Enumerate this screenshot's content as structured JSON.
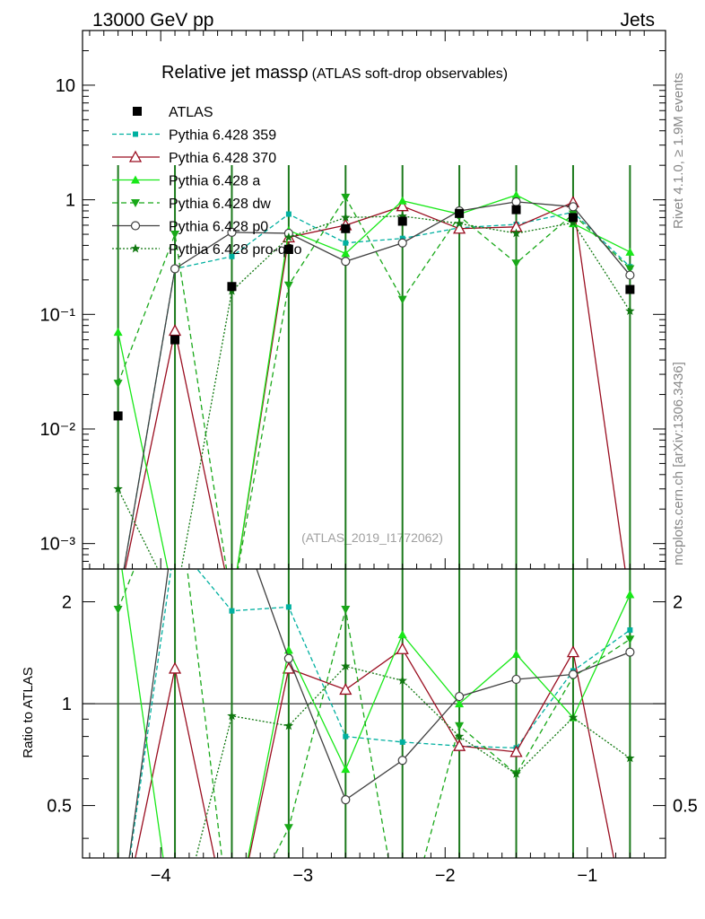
{
  "header": {
    "left": "13000 GeV pp",
    "right": "Jets",
    "side_top": "Rivet 4.1.0, ≥ 1.9M events",
    "side_bottom": "mcplots.cern.ch [arXiv:1306.3436]"
  },
  "chart_data": {
    "type": "line",
    "title": "Relative jet massρ",
    "subtitle": "(ATLAS soft-drop observables)",
    "watermark": "(ATLAS_2019_I1772062)",
    "xlabel": "",
    "ylabel_ratio": "Ratio to ATLAS",
    "x": [
      -4.3,
      -3.9,
      -3.5,
      -3.1,
      -2.7,
      -2.3,
      -1.9,
      -1.5,
      -1.1,
      -0.7
    ],
    "xlim": [
      -4.55,
      -0.45
    ],
    "ylim_main": [
      0.0006,
      30
    ],
    "ylim_ratio": [
      0.35,
      2.5
    ],
    "x_ticks": [
      "−4",
      "−3",
      "−2",
      "−1"
    ],
    "x_tick_values": [
      -4,
      -3,
      -2,
      -1
    ],
    "y_ticks_main": [
      {
        "v": 10,
        "label": "10"
      },
      {
        "v": 1,
        "label": "1"
      },
      {
        "v": 0.1,
        "label": "10⁻¹"
      },
      {
        "v": 0.01,
        "label": "10⁻²"
      },
      {
        "v": 0.001,
        "label": "10⁻³"
      }
    ],
    "y_ticks_ratio": [
      {
        "v": 2,
        "label": "2"
      },
      {
        "v": 1,
        "label": "1"
      },
      {
        "v": 0.5,
        "label": "0.5"
      }
    ],
    "data": {
      "name": "ATLAS",
      "values": [
        0.013,
        0.06,
        0.175,
        0.37,
        0.56,
        0.65,
        0.76,
        0.82,
        0.7,
        0.165
      ]
    },
    "series": [
      {
        "name": "Pythia 6.428 359",
        "color": "#00b0a0",
        "dash": "5,3",
        "marker": "square",
        "values": [
          0.0003,
          0.25,
          0.32,
          0.75,
          0.42,
          0.46,
          0.57,
          0.61,
          0.78,
          0.26
        ]
      },
      {
        "name": "Pythia 6.428 370",
        "color": "#9a0e20",
        "dash": "",
        "marker": "triangle-open",
        "values": [
          0.0003,
          0.072,
          0.0003,
          0.47,
          0.6,
          0.88,
          0.56,
          0.58,
          0.95,
          0.0003
        ]
      },
      {
        "name": "Pythia 6.428 a",
        "color": "#18e818",
        "dash": "",
        "marker": "triangle",
        "values": [
          0.07,
          0.0003,
          0.0003,
          0.54,
          0.34,
          0.98,
          0.75,
          1.1,
          0.62,
          0.35
        ]
      },
      {
        "name": "Pythia 6.428 dw",
        "color": "#18a818",
        "dash": "6,4",
        "marker": "triangle-down",
        "values": [
          0.025,
          0.5,
          0.0003,
          0.18,
          1.05,
          0.135,
          0.72,
          0.28,
          0.75,
          0.25
        ]
      },
      {
        "name": "Pythia 6.428 p0",
        "color": "#404040",
        "dash": "",
        "marker": "circle-open",
        "values": [
          0.0003,
          0.25,
          0.52,
          0.51,
          0.29,
          0.42,
          0.8,
          0.96,
          0.87,
          0.22
        ]
      },
      {
        "name": "Pythia 6.428 pro-q2o",
        "color": "#107810",
        "dash": "2,2",
        "marker": "star",
        "values": [
          0.003,
          0.0003,
          0.16,
          0.47,
          0.7,
          0.72,
          0.62,
          0.51,
          0.63,
          0.107
        ]
      }
    ],
    "ratios": [
      [
        0.2,
        3.0,
        1.88,
        1.93,
        0.8,
        0.77,
        0.75,
        0.74,
        1.25,
        1.65
      ],
      [
        0.2,
        1.27,
        0.2,
        1.27,
        1.1,
        1.45,
        0.75,
        0.72,
        1.42,
        0.2
      ],
      [
        3.0,
        0.2,
        0.2,
        1.44,
        0.64,
        1.6,
        1.0,
        1.4,
        0.91,
        2.1
      ],
      [
        1.9,
        5.0,
        0.2,
        0.43,
        1.9,
        0.2,
        0.86,
        0.62,
        1.2,
        1.55
      ],
      [
        0.2,
        3.5,
        4.0,
        1.36,
        0.52,
        0.68,
        1.05,
        1.18,
        1.22,
        1.42
      ],
      [
        0.2,
        0.2,
        0.92,
        0.86,
        1.29,
        1.17,
        0.8,
        0.62,
        0.91,
        0.69
      ]
    ]
  }
}
